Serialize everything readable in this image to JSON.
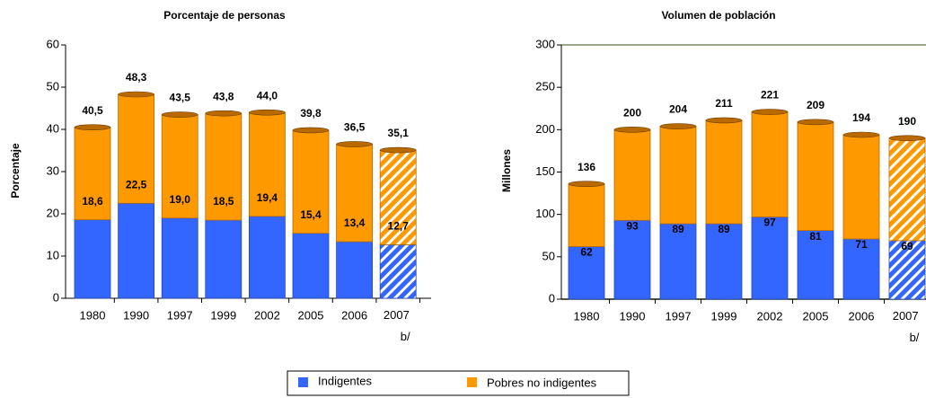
{
  "chart_data": [
    {
      "type": "bar",
      "stacked": true,
      "title": "Porcentaje de personas",
      "ylabel": "Porcentaje",
      "categories": [
        "1980",
        "1990",
        "1997",
        "1999",
        "2002",
        "2005",
        "2006",
        "2007 b/"
      ],
      "series": [
        {
          "name": "Indigentes",
          "color": "#3366ff",
          "values": [
            18.6,
            22.5,
            19.0,
            18.5,
            19.4,
            15.4,
            13.4,
            12.7
          ],
          "value_labels": [
            "18,6",
            "22,5",
            "19,0",
            "18,5",
            "19,4",
            "15,4",
            "13,4",
            "12,7"
          ]
        },
        {
          "name": "Pobres no indigentes",
          "color": "#ff9900",
          "values": [
            21.9,
            25.8,
            24.5,
            25.3,
            24.6,
            24.4,
            23.1,
            22.4
          ]
        }
      ],
      "totals": [
        40.5,
        48.3,
        43.5,
        43.8,
        44.0,
        39.8,
        36.5,
        35.1
      ],
      "total_labels": [
        "40,5",
        "48,3",
        "43,5",
        "43,8",
        "44,0",
        "39,8",
        "36,5",
        "35,1"
      ],
      "hatched": [
        false,
        false,
        false,
        false,
        false,
        false,
        false,
        true
      ],
      "ylim": [
        0,
        60
      ],
      "yticks": [
        0,
        10,
        20,
        30,
        40,
        50,
        60
      ],
      "frame": false
    },
    {
      "type": "bar",
      "stacked": true,
      "title": "Volumen de población",
      "ylabel": "Millones",
      "categories": [
        "1980",
        "1990",
        "1997",
        "1999",
        "2002",
        "2005",
        "2006",
        "2007 b/"
      ],
      "series": [
        {
          "name": "Indigentes",
          "color": "#3366ff",
          "values": [
            62,
            93,
            89,
            89,
            97,
            81,
            71,
            69
          ]
        },
        {
          "name": "Pobres no indigentes",
          "color": "#ff9900",
          "values": [
            74,
            107,
            115,
            122,
            124,
            128,
            123,
            121
          ]
        }
      ],
      "totals": [
        136,
        200,
        204,
        211,
        221,
        209,
        194,
        190
      ],
      "hatched": [
        false,
        false,
        false,
        false,
        false,
        false,
        false,
        true
      ],
      "ylim": [
        0,
        300
      ],
      "yticks": [
        0,
        50,
        100,
        150,
        200,
        250,
        300
      ],
      "frame": true
    }
  ]
}
